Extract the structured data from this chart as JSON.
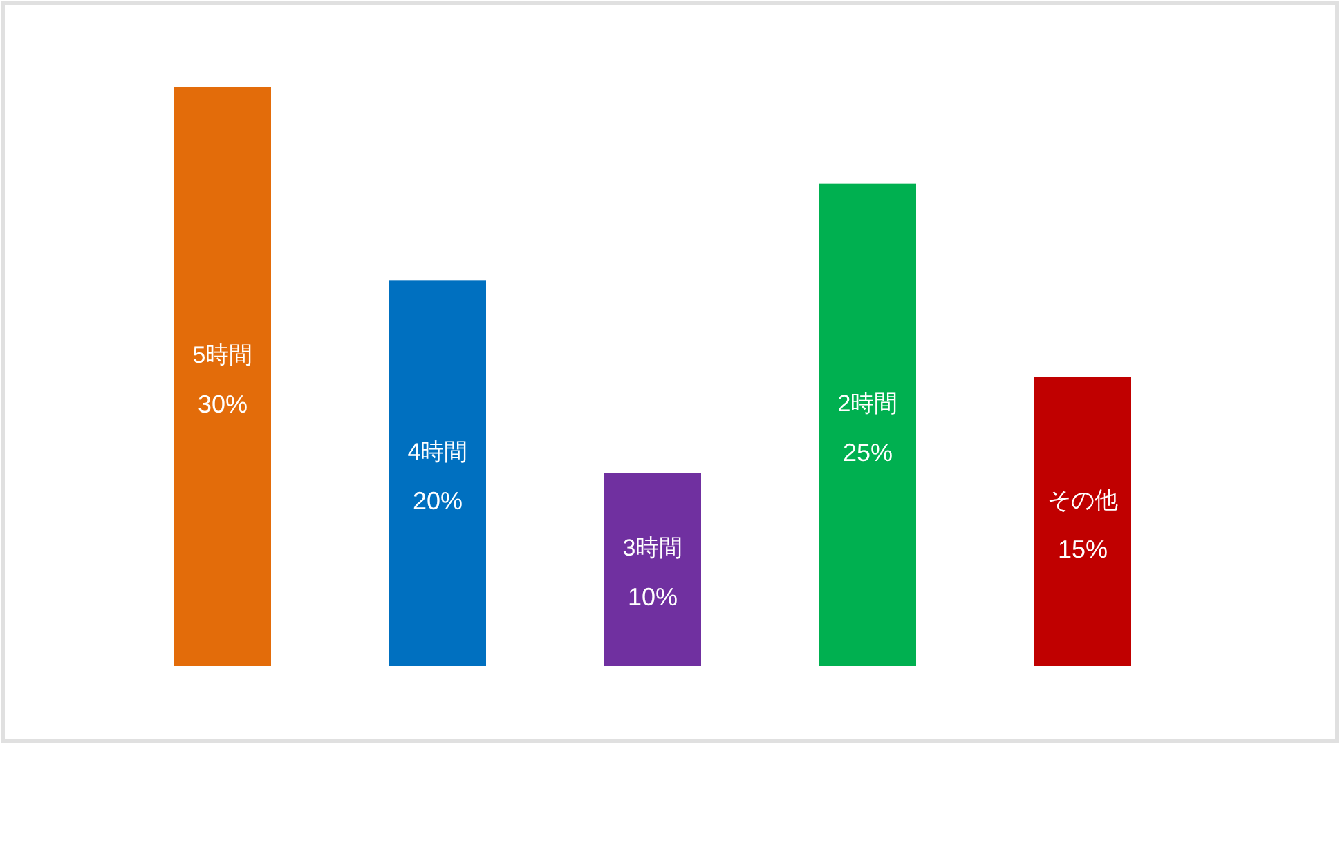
{
  "chart_data": {
    "type": "bar",
    "categories": [
      "5時間",
      "4時間",
      "3時間",
      "2時間",
      "その他"
    ],
    "values": [
      30,
      20,
      10,
      25,
      15
    ],
    "value_labels": [
      "30%",
      "20%",
      "10%",
      "25%",
      "15%"
    ],
    "colors": [
      "#e36c0a",
      "#0070c0",
      "#7030a0",
      "#00b050",
      "#c00000"
    ]
  }
}
